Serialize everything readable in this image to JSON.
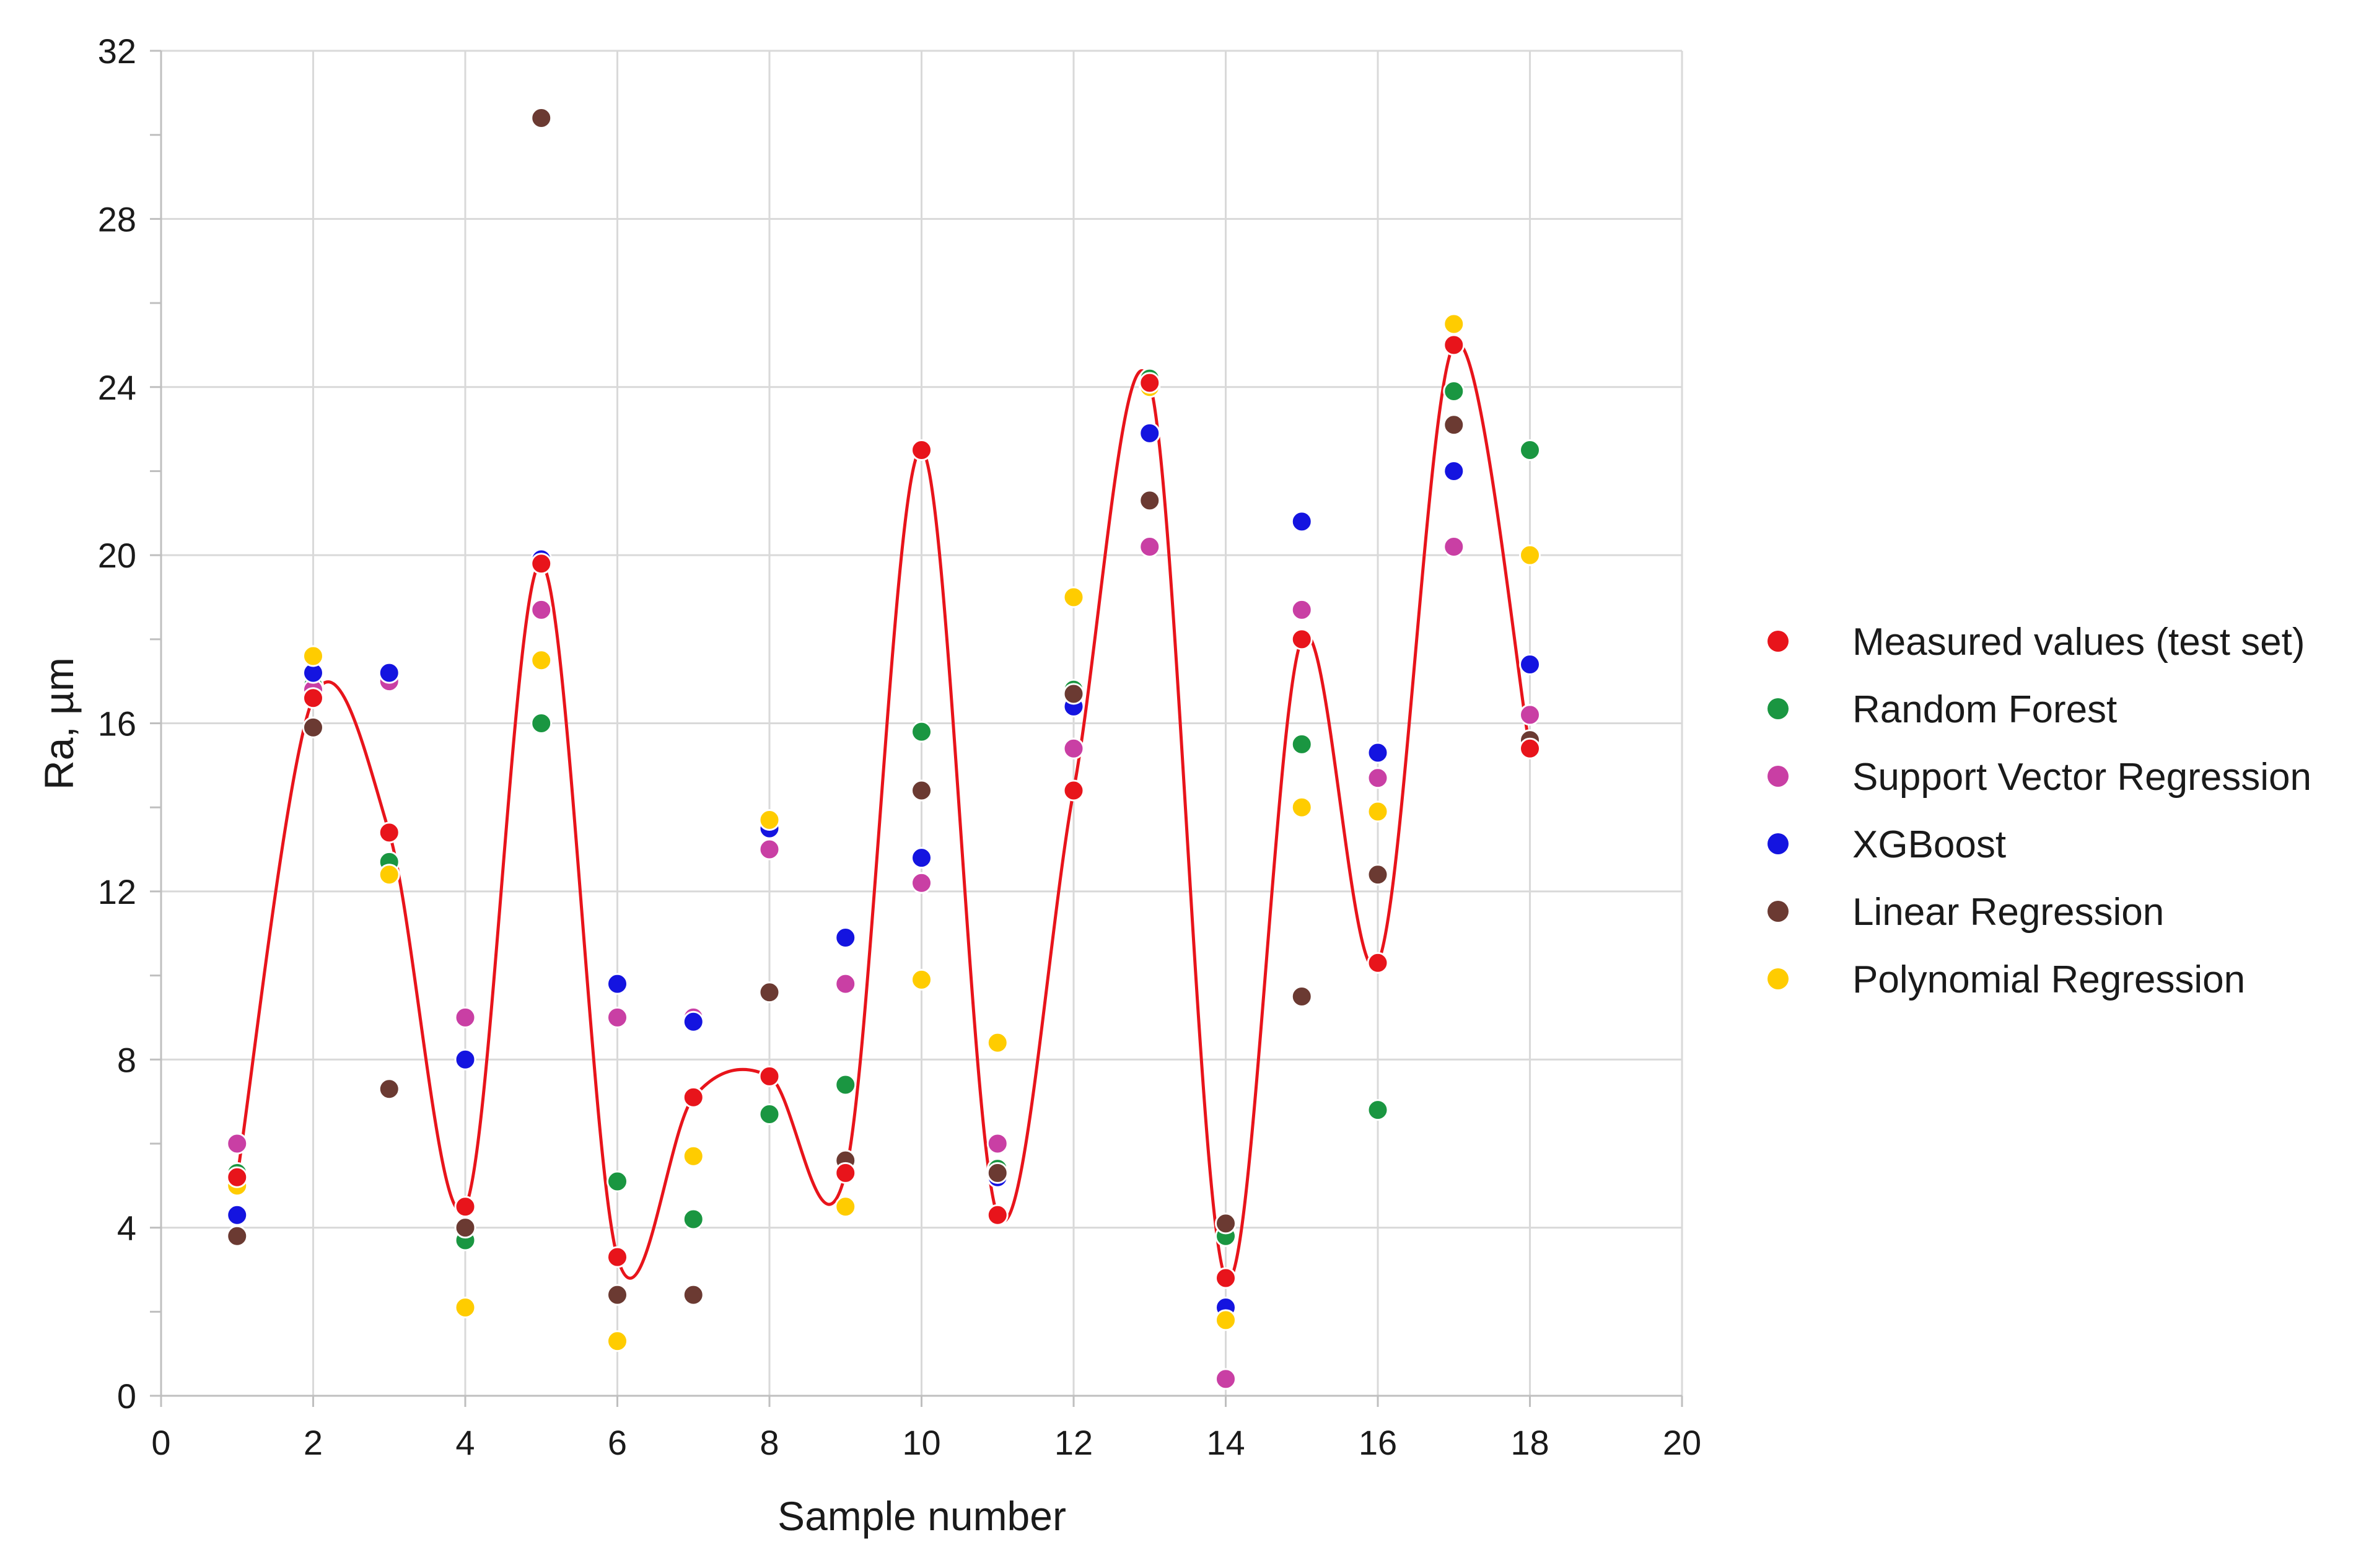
{
  "chart_data": {
    "type": "scatter",
    "title": "",
    "xlabel": "Sample number",
    "ylabel": "Ra, µm",
    "xlim": [
      0,
      20
    ],
    "ylim": [
      0,
      32
    ],
    "xticks": [
      0,
      2,
      4,
      6,
      8,
      10,
      12,
      14,
      16,
      18,
      20
    ],
    "yticks": [
      0,
      4,
      8,
      12,
      16,
      20,
      24,
      28,
      32
    ],
    "grid": true,
    "legend_position": "right",
    "x": [
      1,
      2,
      3,
      4,
      5,
      6,
      7,
      8,
      9,
      10,
      11,
      12,
      13,
      14,
      15,
      16,
      17,
      18
    ],
    "series": [
      {
        "name": "Measured values (test set)",
        "color": "#e8141b",
        "smooth_line": true,
        "values": [
          5.2,
          16.6,
          13.4,
          4.5,
          19.8,
          3.3,
          7.1,
          7.6,
          5.3,
          22.5,
          4.3,
          14.4,
          24.1,
          2.8,
          18.0,
          10.3,
          25.0,
          15.4
        ]
      },
      {
        "name": "Random Forest",
        "color": "#1a9641",
        "values": [
          5.3,
          16.9,
          12.7,
          3.7,
          16.0,
          5.1,
          4.2,
          6.7,
          7.4,
          15.8,
          5.4,
          16.8,
          24.2,
          3.8,
          15.5,
          6.8,
          23.9,
          22.5
        ]
      },
      {
        "name": "Support Vector Regression",
        "color": "#c93fa4",
        "values": [
          6.0,
          16.8,
          17.0,
          9.0,
          18.7,
          9.0,
          9.0,
          13.0,
          9.8,
          12.2,
          6.0,
          15.4,
          20.2,
          0.4,
          18.7,
          14.7,
          20.2,
          16.2
        ]
      },
      {
        "name": "XGBoost",
        "color": "#1414e0",
        "values": [
          4.3,
          17.2,
          17.2,
          8.0,
          19.9,
          9.8,
          8.9,
          13.5,
          10.9,
          12.8,
          5.2,
          16.4,
          22.9,
          2.1,
          20.8,
          15.3,
          22.0,
          17.4
        ]
      },
      {
        "name": "Linear Regression",
        "color": "#6b3a32",
        "values": [
          3.8,
          15.9,
          7.3,
          4.0,
          30.4,
          2.4,
          2.4,
          9.6,
          5.6,
          14.4,
          5.3,
          16.7,
          21.3,
          4.1,
          9.5,
          12.4,
          23.1,
          15.6
        ]
      },
      {
        "name": "Polynomial Regression",
        "color": "#ffcc00",
        "values": [
          5.0,
          17.6,
          12.4,
          2.1,
          17.5,
          1.3,
          5.7,
          13.7,
          4.5,
          9.9,
          8.4,
          19.0,
          24.0,
          1.8,
          14.0,
          13.9,
          25.5,
          20.0
        ]
      }
    ]
  }
}
